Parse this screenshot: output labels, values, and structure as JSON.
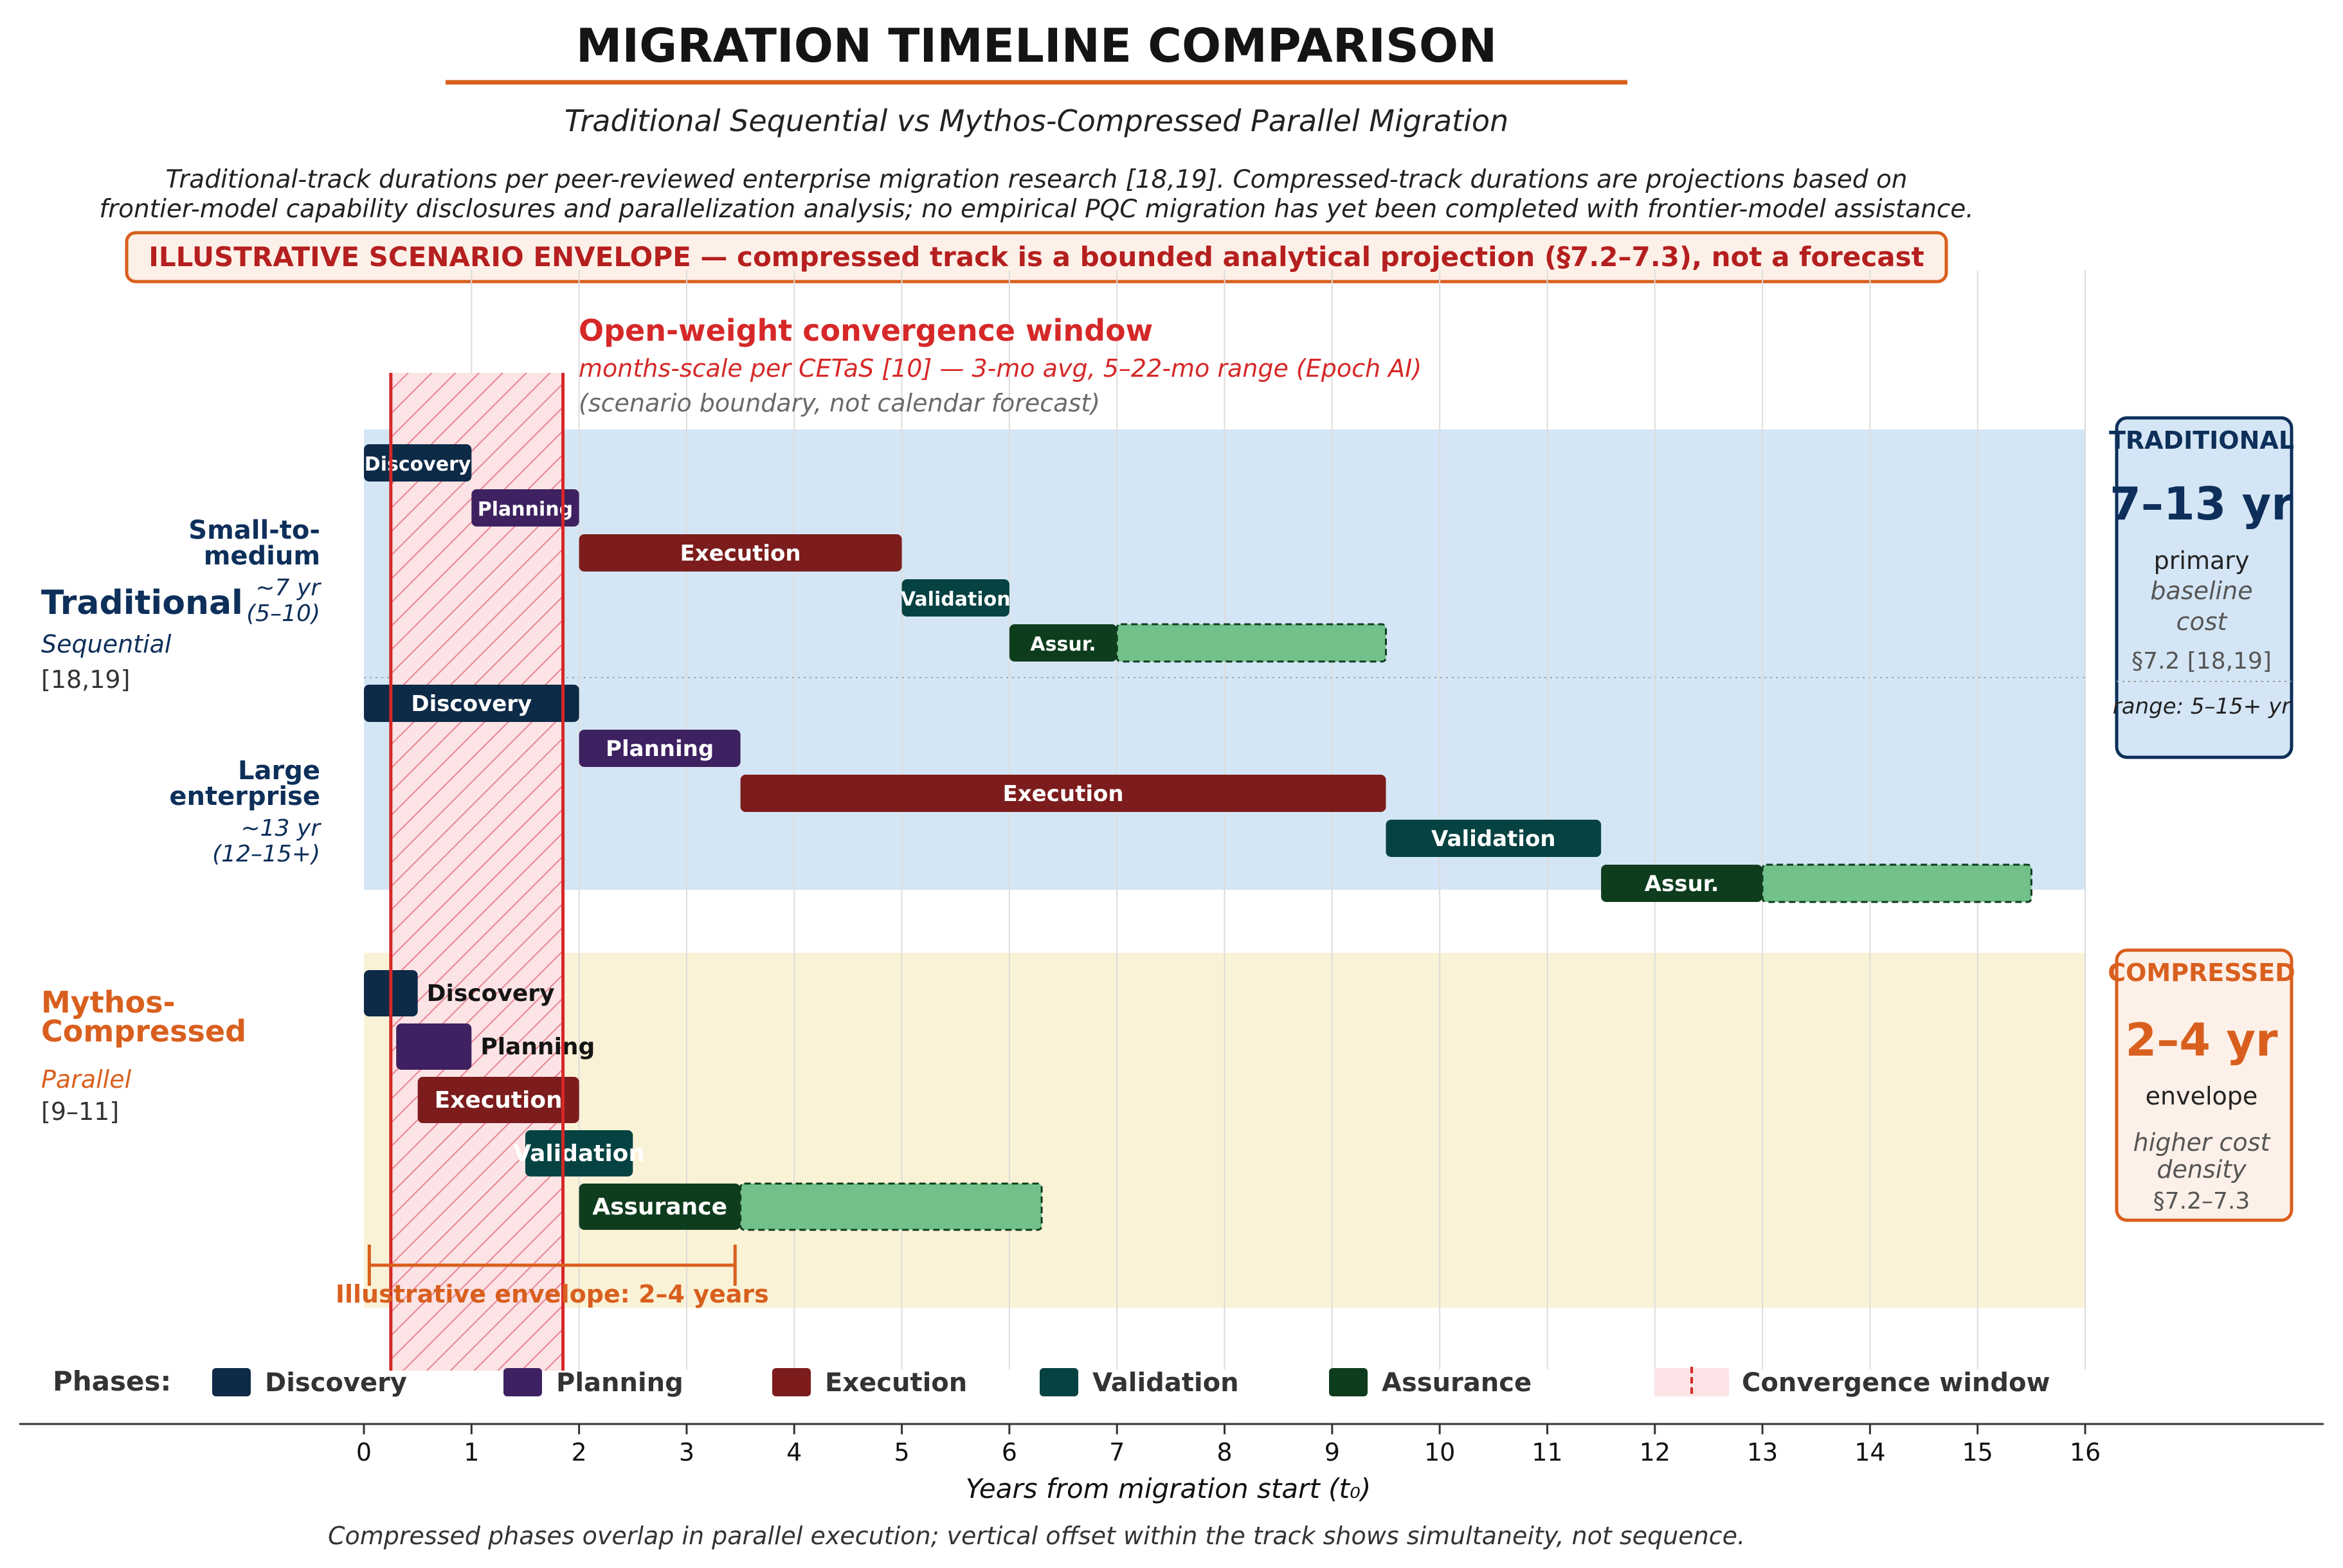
{
  "header": {
    "title": "MIGRATION TIMELINE COMPARISON",
    "subtitle": "Traditional Sequential vs Mythos-Compressed Parallel Migration",
    "note_line1": "Traditional-track durations per peer-reviewed enterprise migration research [18,19]. Compressed-track durations are projections based on",
    "note_line2": "frontier-model capability disclosures and parallelization analysis; no empirical PQC migration has yet been completed with frontier-model assistance.",
    "banner": "ILLUSTRATIVE SCENARIO ENVELOPE — compressed track is a bounded analytical projection (§7.2–7.3), not a forecast"
  },
  "colors": {
    "accent": "#d95f1e",
    "title": "#141414",
    "banner_text": "#b51f1f",
    "banner_bg": "#fdf0e8",
    "trad_band": "#d4e6f5",
    "comp_band": "#faf2d6",
    "discovery": "#0d2a47",
    "planning": "#3e2160",
    "execution": "#7c1c1c",
    "validation": "#064242",
    "assurance": "#0e3d1e",
    "tail": "#72c08a",
    "window_red": "#d62828",
    "window_fill": "#fbe3e6",
    "trad_text": "#0d2f5a",
    "comp_text": "#d95f1e"
  },
  "convergence": {
    "title": "Open-weight convergence window",
    "line1": "months-scale per CETaS [10] — 3-mo avg, 5–22-mo range (Epoch AI)",
    "line2": "(scenario boundary, not calendar forecast)"
  },
  "left_labels": {
    "traditional": {
      "name": "Traditional",
      "sub": "Sequential",
      "ref": "[18,19]"
    },
    "small_medium": {
      "line1": "Small-to-",
      "line2": "medium",
      "dur1": "~7 yr",
      "dur2": "(5–10)"
    },
    "large": {
      "line1": "Large",
      "line2": "enterprise",
      "dur1": "~13 yr",
      "dur2": "(12–15+)"
    },
    "compressed": {
      "line1": "Mythos-",
      "line2": "Compressed",
      "sub": "Parallel",
      "ref": "[9–11]"
    }
  },
  "right_boxes": {
    "traditional": {
      "heading": "TRADITIONAL",
      "value": "7–13 yr",
      "line1": "primary",
      "line2": "baseline",
      "line3": "cost",
      "ref": "§7.2 [18,19]",
      "range": "range: 5–15+ yr"
    },
    "compressed": {
      "heading": "COMPRESSED",
      "value": "2–4 yr",
      "line1": "envelope",
      "line2": "higher cost",
      "line3": "density",
      "ref": "§7.2–7.3"
    }
  },
  "envelope_label": "Illustrative envelope: 2–4 years",
  "legend": {
    "title": "Phases:",
    "items": [
      "Discovery",
      "Planning",
      "Execution",
      "Validation",
      "Assurance",
      "Convergence window"
    ]
  },
  "footer": "Compressed phases overlap in parallel execution; vertical offset within the track shows simultaneity, not sequence.",
  "chart_data": {
    "type": "gantt",
    "xlabel": "Years from migration start (t₀)",
    "xlim": [
      0,
      16
    ],
    "xticks": [
      0,
      1,
      2,
      3,
      4,
      5,
      6,
      7,
      8,
      9,
      10,
      11,
      12,
      13,
      14,
      15,
      16
    ],
    "convergence_window": [
      0.25,
      1.85
    ],
    "envelope_years": [
      0.05,
      3.45
    ],
    "tracks": [
      {
        "name": "Small-to-medium",
        "group": "Traditional",
        "phases": [
          {
            "label": "Discovery",
            "phase": "discovery",
            "start": 0,
            "end": 1
          },
          {
            "label": "Planning",
            "phase": "planning",
            "start": 1,
            "end": 2
          },
          {
            "label": "Execution",
            "phase": "execution",
            "start": 2,
            "end": 5
          },
          {
            "label": "Validation",
            "phase": "validation",
            "start": 5,
            "end": 6
          },
          {
            "label": "Assur.",
            "phase": "assurance",
            "start": 6,
            "end": 7,
            "tail_end": 9.5
          }
        ]
      },
      {
        "name": "Large enterprise",
        "group": "Traditional",
        "phases": [
          {
            "label": "Discovery",
            "phase": "discovery",
            "start": 0,
            "end": 2
          },
          {
            "label": "Planning",
            "phase": "planning",
            "start": 2,
            "end": 3.5
          },
          {
            "label": "Execution",
            "phase": "execution",
            "start": 3.5,
            "end": 9.5
          },
          {
            "label": "Validation",
            "phase": "validation",
            "start": 9.5,
            "end": 11.5
          },
          {
            "label": "Assur.",
            "phase": "assurance",
            "start": 11.5,
            "end": 13,
            "tail_end": 15.5
          }
        ]
      },
      {
        "name": "Mythos-Compressed",
        "group": "Compressed",
        "phases": [
          {
            "label": "Discovery",
            "phase": "discovery",
            "start": 0,
            "end": 0.5
          },
          {
            "label": "Planning",
            "phase": "planning",
            "start": 0.3,
            "end": 1
          },
          {
            "label": "Execution",
            "phase": "execution",
            "start": 0.5,
            "end": 2
          },
          {
            "label": "Validation",
            "phase": "validation",
            "start": 1.5,
            "end": 2.5
          },
          {
            "label": "Assurance",
            "phase": "assurance",
            "start": 2,
            "end": 3.5,
            "tail_end": 6.3
          }
        ]
      }
    ]
  }
}
